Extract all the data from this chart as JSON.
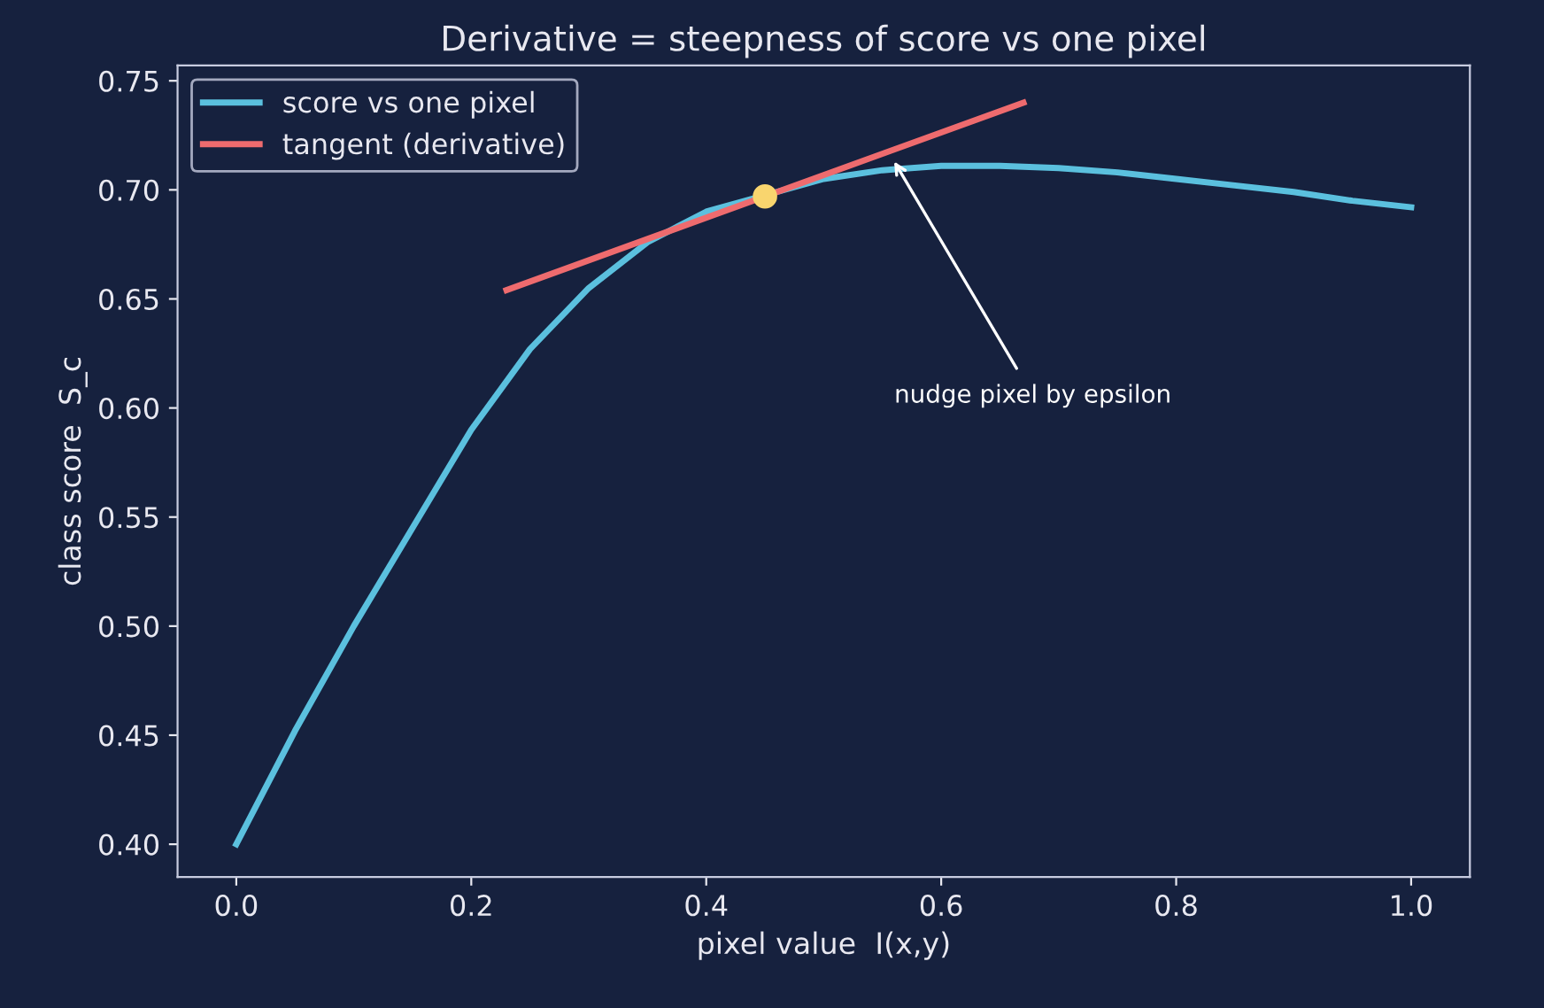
{
  "chart_data": {
    "type": "line",
    "title": "Derivative = steepness of score vs one pixel",
    "xlabel": "pixel value  I(x,y)",
    "ylabel": "class score  S_c",
    "series": [
      {
        "name": "score vs one pixel",
        "color": "#5bc0de",
        "x": [
          0.0,
          0.05,
          0.1,
          0.15,
          0.2,
          0.25,
          0.3,
          0.35,
          0.4,
          0.5,
          0.55,
          0.6,
          0.65,
          0.7,
          0.75,
          0.8,
          0.85,
          0.9,
          0.95,
          1.0
        ],
        "values": [
          0.4,
          0.452,
          0.5,
          0.545,
          0.59,
          0.627,
          0.655,
          0.676,
          0.69,
          0.705,
          0.709,
          0.711,
          0.711,
          0.71,
          0.708,
          0.705,
          0.702,
          0.699,
          0.695,
          0.692
        ]
      },
      {
        "name": "tangent (derivative)",
        "color": "#ee6b6e",
        "x": [
          0.23,
          0.67
        ],
        "values": [
          0.654,
          0.74
        ]
      },
      {
        "type": "scatter",
        "color": "#f9d56e",
        "x": [
          0.45
        ],
        "values": [
          0.697
        ]
      }
    ],
    "annotations": [
      {
        "text": "nudge pixel by epsilon",
        "x": 0.56,
        "y": 0.713
      }
    ],
    "xlim": [
      -0.05,
      1.05
    ],
    "xticks": [
      {
        "value": 0.0,
        "label": "0.0"
      },
      {
        "value": 0.2,
        "label": "0.2"
      },
      {
        "value": 0.4,
        "label": "0.4"
      },
      {
        "value": 0.6,
        "label": "0.6"
      },
      {
        "value": 0.8,
        "label": "0.8"
      },
      {
        "value": 1.0,
        "label": "1.0"
      }
    ],
    "ylim": [
      0.385,
      0.757
    ],
    "yticks": [
      {
        "value": 0.4,
        "label": "0.40"
      },
      {
        "value": 0.45,
        "label": "0.45"
      },
      {
        "value": 0.5,
        "label": "0.50"
      },
      {
        "value": 0.55,
        "label": "0.55"
      },
      {
        "value": 0.6,
        "label": "0.60"
      },
      {
        "value": 0.65,
        "label": "0.65"
      },
      {
        "value": 0.7,
        "label": "0.70"
      },
      {
        "value": 0.75,
        "label": "0.75"
      }
    ],
    "grid": false,
    "legend": "top left"
  }
}
